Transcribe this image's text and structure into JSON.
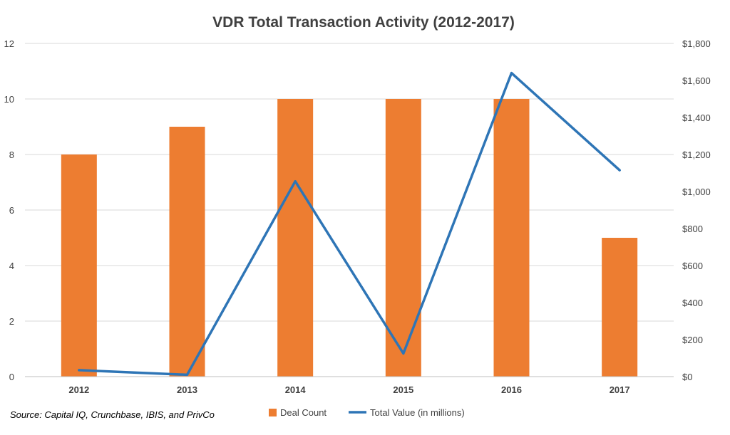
{
  "chart_data": {
    "type": "bar",
    "title": "VDR Total Transaction Activity (2012-2017)",
    "categories": [
      "2012",
      "2013",
      "2014",
      "2015",
      "2016",
      "2017"
    ],
    "series": [
      {
        "name": "Deal Count",
        "type": "bar",
        "axis": "left",
        "color": "#ed7d31",
        "values": [
          8,
          9,
          10,
          10,
          10,
          5
        ]
      },
      {
        "name": "Total Value (in millions)",
        "type": "line",
        "axis": "right",
        "color": "#2e75b6",
        "values": [
          35,
          10,
          1055,
          125,
          1640,
          1115
        ]
      }
    ],
    "y_left": {
      "min": 0,
      "max": 12,
      "step": 2,
      "ticks": [
        "0",
        "2",
        "4",
        "6",
        "8",
        "10",
        "12"
      ]
    },
    "y_right": {
      "min": 0,
      "max": 1800,
      "step": 200,
      "ticks": [
        "$0",
        "$200",
        "$400",
        "$600",
        "$800",
        "$1,000",
        "$1,200",
        "$1,400",
        "$1,600",
        "$1,800"
      ]
    },
    "grid": true,
    "legend_position": "bottom",
    "source_note": "Source: Capital IQ, Crunchbase, IBIS, and PrivCo"
  }
}
